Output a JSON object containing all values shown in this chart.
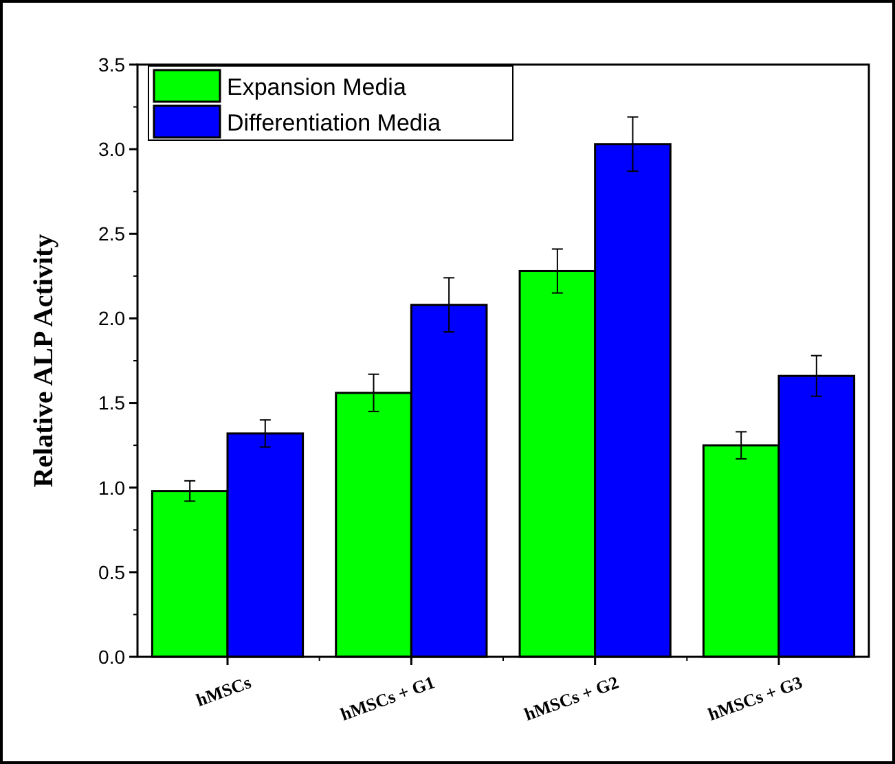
{
  "chart_data": {
    "type": "bar",
    "ylabel": "Relative ALP Activity",
    "categories": [
      "hMSCs",
      "hMSCs + G1",
      "hMSCs + G2",
      "hMSCs + G3"
    ],
    "series": [
      {
        "name": "Expansion Media",
        "color": "#00ff00",
        "values": [
          0.98,
          1.56,
          2.28,
          1.25
        ],
        "errors": [
          0.06,
          0.11,
          0.13,
          0.08
        ]
      },
      {
        "name": "Differentiation Media",
        "color": "#0000ff",
        "values": [
          1.32,
          2.08,
          3.03,
          1.66
        ],
        "errors": [
          0.08,
          0.16,
          0.16,
          0.12
        ]
      }
    ],
    "ylim": [
      0,
      3.5
    ],
    "yticks": [
      {
        "value": 0,
        "label": "0.0"
      },
      0.5,
      {
        "value": 1,
        "label": "1.0"
      },
      1.5,
      {
        "value": 2,
        "label": "2.0"
      },
      2.5,
      {
        "value": 3,
        "label": "3.0"
      },
      3.5
    ],
    "legend": "top left",
    "grid": false
  }
}
